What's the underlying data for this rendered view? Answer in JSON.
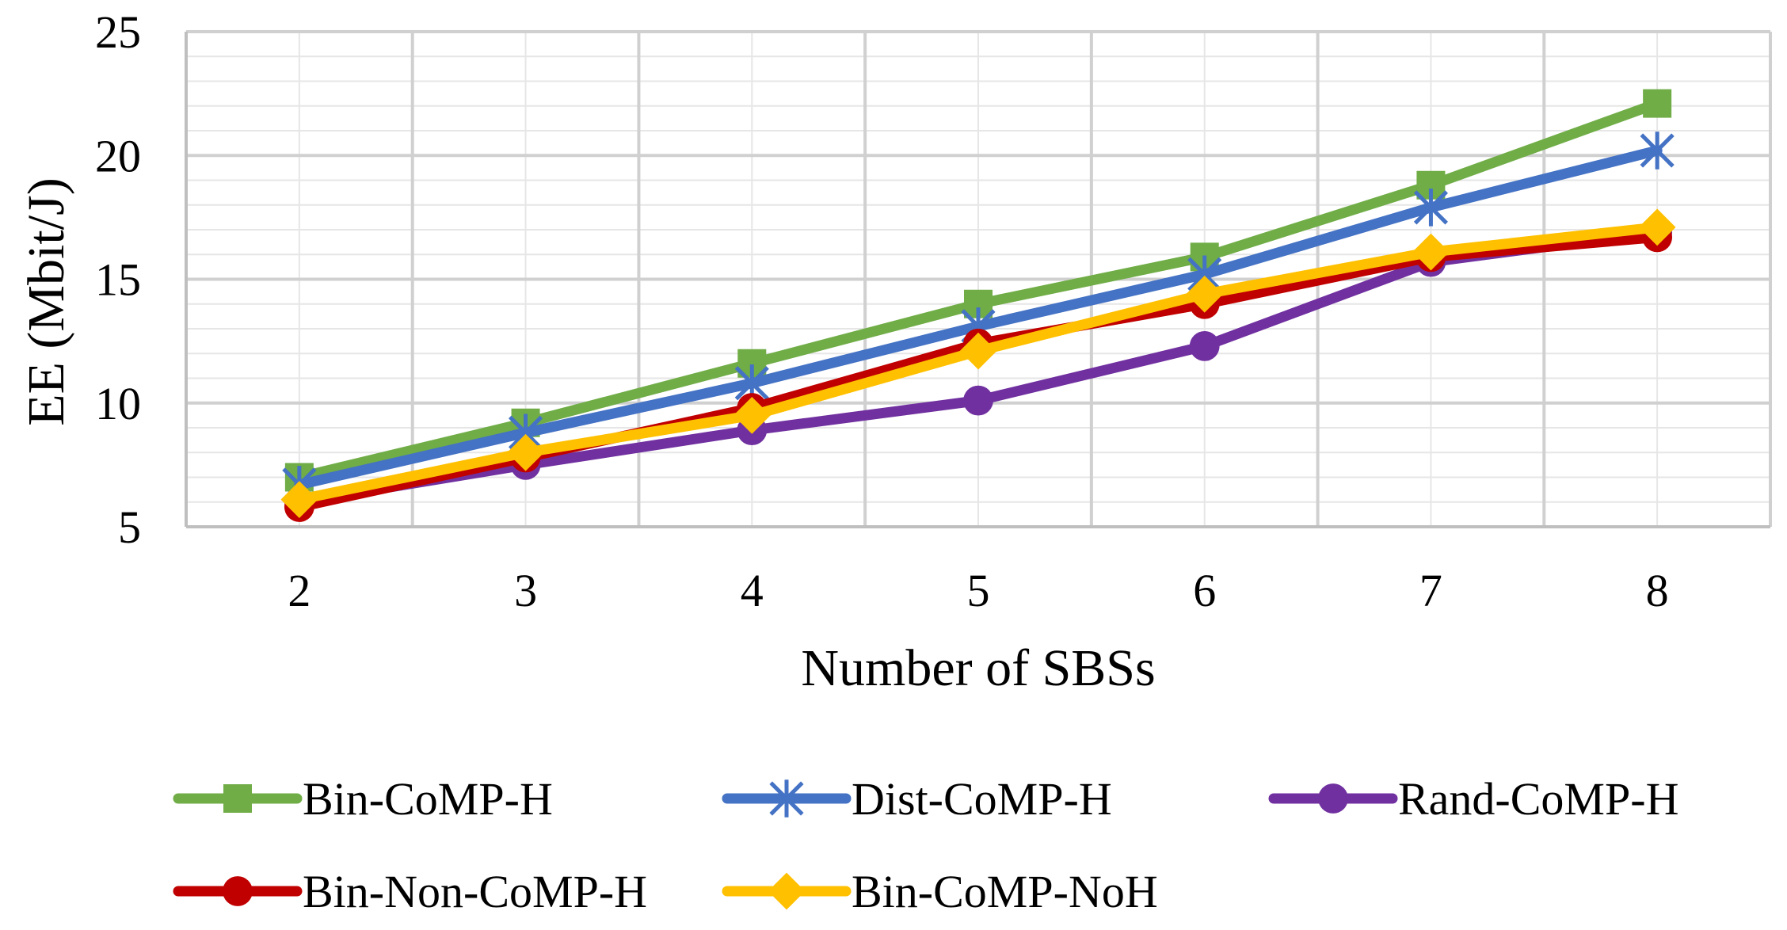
{
  "chart_data": {
    "type": "line",
    "title": "",
    "xlabel": "Number of SBSs",
    "ylabel": "EE (Mbit/J)",
    "x": [
      2,
      3,
      4,
      5,
      6,
      7,
      8
    ],
    "x_tick_labels": [
      "2",
      "3",
      "4",
      "5",
      "6",
      "7",
      "8"
    ],
    "ylim": [
      5,
      25
    ],
    "y_ticks": [
      5,
      10,
      15,
      20,
      25
    ],
    "y_tick_labels": [
      "5",
      "10",
      "15",
      "20",
      "25"
    ],
    "grid": "major and minor",
    "legend_position": "bottom",
    "series": [
      {
        "name": "Bin-CoMP-H",
        "color": "#70ad47",
        "marker": "square",
        "values": [
          7.0,
          9.2,
          11.6,
          14.0,
          15.9,
          18.8,
          22.1
        ]
      },
      {
        "name": "Dist-CoMP-H",
        "color": "#4472c4",
        "marker": "asterisk",
        "values": [
          6.7,
          8.8,
          10.8,
          13.1,
          15.2,
          17.9,
          20.2
        ]
      },
      {
        "name": "Rand-CoMP-H",
        "color": "#7030a0",
        "marker": "circle",
        "values": [
          6.0,
          7.5,
          8.9,
          10.1,
          12.3,
          15.7,
          16.9
        ]
      },
      {
        "name": "Bin-Non-CoMP-H",
        "color": "#c00000",
        "marker": "circle",
        "values": [
          5.8,
          7.8,
          9.8,
          12.4,
          14.0,
          15.9,
          16.7
        ]
      },
      {
        "name": "Bin-CoMP-NoH",
        "color": "#ffc000",
        "marker": "diamond",
        "values": [
          6.1,
          8.0,
          9.5,
          12.1,
          14.4,
          16.1,
          17.1
        ]
      }
    ]
  }
}
